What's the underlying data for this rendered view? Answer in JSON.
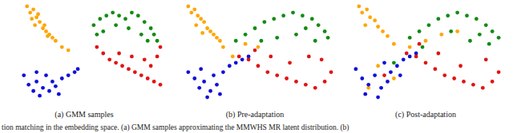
{
  "chart_data": [
    {
      "type": "scatter",
      "title": "(a) GMM samples",
      "xlim": [
        0,
        100
      ],
      "ylim": [
        0,
        65
      ],
      "tick_labels": false,
      "marker": "circle",
      "series": [
        {
          "color": "#ffa500",
          "x": [
            14,
            16,
            18,
            17,
            20,
            22,
            19,
            24,
            26,
            28,
            30,
            32,
            25,
            21,
            27,
            36,
            40
          ],
          "values": [
            62,
            58,
            60,
            54,
            55,
            52,
            50,
            48,
            46,
            44,
            42,
            40,
            50,
            57,
            43,
            36,
            34
          ]
        },
        {
          "color": "#1010d8",
          "x": [
            12,
            15,
            18,
            20,
            24,
            22,
            28,
            30,
            26,
            32,
            36,
            40,
            44,
            46,
            34,
            20
          ],
          "values": [
            18,
            12,
            8,
            14,
            10,
            5,
            8,
            14,
            18,
            11,
            16,
            18,
            20,
            22,
            6,
            20
          ]
        },
        {
          "color": "#138a13",
          "x": [
            56,
            60,
            64,
            68,
            72,
            76,
            80,
            84,
            88,
            92,
            94,
            90,
            86,
            58,
            62,
            70,
            78,
            96
          ],
          "values": [
            50,
            54,
            56,
            58,
            56,
            54,
            58,
            56,
            52,
            48,
            44,
            40,
            44,
            44,
            46,
            50,
            48,
            40
          ]
        },
        {
          "color": "#e01414",
          "x": [
            58,
            62,
            66,
            70,
            74,
            78,
            82,
            86,
            90,
            94,
            98,
            92,
            96,
            98,
            88,
            80,
            72
          ],
          "values": [
            36,
            32,
            28,
            26,
            24,
            22,
            20,
            18,
            16,
            14,
            12,
            24,
            30,
            36,
            28,
            30,
            32
          ]
        }
      ]
    },
    {
      "type": "scatter",
      "title": "(b) Pre-adaptation",
      "xlim": [
        0,
        100
      ],
      "ylim": [
        0,
        65
      ],
      "tick_labels": false,
      "marker": "circle",
      "series": [
        {
          "color": "#ffa500",
          "x": [
            8,
            10,
            12,
            14,
            16,
            13,
            18,
            20,
            22,
            24,
            26,
            28,
            17,
            30,
            36,
            44,
            52
          ],
          "values": [
            62,
            58,
            60,
            56,
            54,
            50,
            52,
            48,
            46,
            44,
            42,
            40,
            45,
            36,
            30,
            38,
            36
          ]
        },
        {
          "color": "#1010d8",
          "x": [
            8,
            12,
            15,
            18,
            22,
            26,
            24,
            30,
            34,
            38,
            42,
            20,
            28,
            16,
            46
          ],
          "values": [
            20,
            16,
            10,
            14,
            8,
            12,
            18,
            20,
            24,
            26,
            28,
            4,
            6,
            22,
            30
          ]
        },
        {
          "color": "#138a13",
          "x": [
            38,
            44,
            50,
            56,
            62,
            68,
            74,
            80,
            86,
            90,
            94,
            96,
            88,
            76,
            64,
            54,
            82
          ],
          "values": [
            40,
            44,
            48,
            52,
            54,
            56,
            58,
            56,
            54,
            50,
            46,
            42,
            40,
            44,
            42,
            40,
            48
          ]
        },
        {
          "color": "#e01414",
          "x": [
            40,
            46,
            52,
            58,
            64,
            70,
            76,
            82,
            88,
            94,
            98,
            92,
            84,
            72,
            60,
            50
          ],
          "values": [
            30,
            28,
            24,
            20,
            18,
            16,
            14,
            12,
            10,
            14,
            20,
            28,
            30,
            26,
            30,
            34
          ]
        }
      ]
    },
    {
      "type": "scatter",
      "title": "(c) Post-adaptation",
      "xlim": [
        0,
        100
      ],
      "ylim": [
        0,
        65
      ],
      "tick_labels": false,
      "marker": "circle",
      "series": [
        {
          "color": "#ffa500",
          "x": [
            8,
            10,
            13,
            15,
            18,
            20,
            23,
            26,
            12,
            30,
            40,
            50,
            60,
            70,
            20,
            30,
            14
          ],
          "values": [
            62,
            58,
            60,
            55,
            53,
            49,
            46,
            43,
            50,
            38,
            36,
            40,
            44,
            46,
            24,
            16,
            10
          ]
        },
        {
          "color": "#1010d8",
          "x": [
            6,
            10,
            14,
            18,
            22,
            26,
            28,
            32,
            36,
            40,
            12,
            20,
            44,
            24,
            34
          ],
          "values": [
            22,
            16,
            12,
            18,
            10,
            14,
            20,
            24,
            28,
            30,
            6,
            4,
            32,
            26,
            18
          ]
        },
        {
          "color": "#138a13",
          "x": [
            40,
            46,
            52,
            58,
            64,
            70,
            76,
            82,
            88,
            92,
            96,
            90,
            78,
            66,
            30,
            48,
            84
          ],
          "values": [
            42,
            46,
            50,
            54,
            56,
            58,
            56,
            54,
            50,
            46,
            42,
            38,
            40,
            46,
            26,
            36,
            44
          ]
        },
        {
          "color": "#e01414",
          "x": [
            38,
            44,
            50,
            56,
            62,
            68,
            74,
            80,
            86,
            92,
            96,
            88,
            72,
            58,
            46,
            24
          ],
          "values": [
            32,
            30,
            26,
            22,
            18,
            16,
            14,
            12,
            10,
            14,
            20,
            28,
            24,
            32,
            38,
            18
          ]
        }
      ]
    }
  ],
  "caption": "tion matching in the embedding space. (a) GMM samples approximating the MMWHS MR latent distribution. (b)"
}
